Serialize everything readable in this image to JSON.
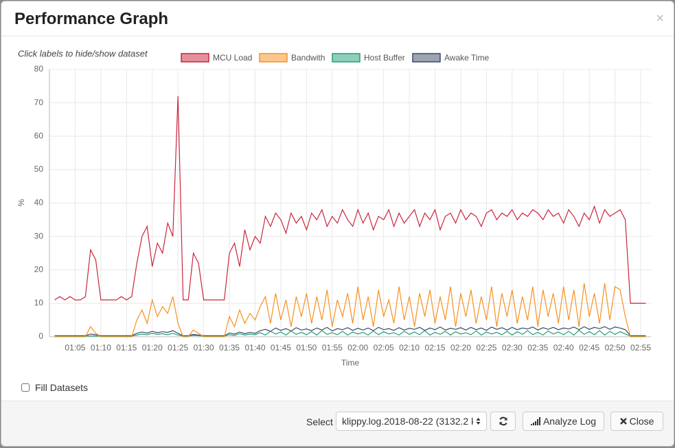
{
  "header": {
    "title": "Performance Graph",
    "close": "×"
  },
  "hint": "Click labels to hide/show dataset",
  "chart_data": {
    "type": "line",
    "y_label": "%",
    "x_label": "Time",
    "x": [
      "01:01",
      "01:02",
      "01:03",
      "01:04",
      "01:05",
      "01:06",
      "01:07",
      "01:08",
      "01:09",
      "01:10",
      "01:11",
      "01:12",
      "01:13",
      "01:14",
      "01:15",
      "01:16",
      "01:17",
      "01:18",
      "01:19",
      "01:20",
      "01:21",
      "01:22",
      "01:23",
      "01:24",
      "01:25",
      "01:26",
      "01:27",
      "01:28",
      "01:29",
      "01:30",
      "01:31",
      "01:32",
      "01:33",
      "01:34",
      "01:35",
      "01:36",
      "01:37",
      "01:38",
      "01:39",
      "01:40",
      "01:41",
      "01:42",
      "01:43",
      "01:44",
      "01:45",
      "01:46",
      "01:47",
      "01:48",
      "01:49",
      "01:50",
      "01:51",
      "01:52",
      "01:53",
      "01:54",
      "01:55",
      "01:56",
      "01:57",
      "01:58",
      "01:59",
      "02:00",
      "02:01",
      "02:02",
      "02:03",
      "02:04",
      "02:05",
      "02:06",
      "02:07",
      "02:08",
      "02:09",
      "02:10",
      "02:11",
      "02:12",
      "02:13",
      "02:14",
      "02:15",
      "02:16",
      "02:17",
      "02:18",
      "02:19",
      "02:20",
      "02:21",
      "02:22",
      "02:23",
      "02:24",
      "02:25",
      "02:26",
      "02:27",
      "02:28",
      "02:29",
      "02:30",
      "02:31",
      "02:32",
      "02:33",
      "02:34",
      "02:35",
      "02:36",
      "02:37",
      "02:38",
      "02:39",
      "02:40",
      "02:41",
      "02:42",
      "02:43",
      "02:44",
      "02:45",
      "02:46",
      "02:47",
      "02:48",
      "02:49",
      "02:50",
      "02:51",
      "02:52",
      "02:53",
      "02:54",
      "02:55",
      "02:56"
    ],
    "series": [
      {
        "name": "MCU Load",
        "color": "#c8263c",
        "values": [
          11,
          12,
          11,
          12,
          11,
          11,
          12,
          26,
          23,
          11,
          11,
          11,
          11,
          12,
          11,
          12,
          22,
          30,
          33,
          21,
          28,
          25,
          34,
          30,
          72,
          11,
          11,
          25,
          22,
          11,
          11,
          11,
          11,
          11,
          25,
          28,
          21,
          32,
          26,
          30,
          28,
          36,
          33,
          37,
          35,
          31,
          37,
          34,
          36,
          32,
          37,
          35,
          38,
          33,
          36,
          34,
          38,
          35,
          33,
          38,
          34,
          37,
          32,
          36,
          35,
          38,
          33,
          37,
          34,
          36,
          38,
          33,
          37,
          35,
          38,
          32,
          36,
          37,
          34,
          38,
          35,
          37,
          36,
          33,
          37,
          38,
          35,
          37,
          36,
          38,
          35,
          37,
          36,
          38,
          37,
          35,
          38,
          36,
          37,
          34,
          38,
          36,
          33,
          37,
          35,
          39,
          34,
          38,
          36,
          37,
          38,
          35,
          10,
          10,
          10,
          10
        ]
      },
      {
        "name": "Bandwith",
        "color": "#f7901e",
        "values": [
          0,
          0,
          0,
          0,
          0,
          0,
          0,
          3,
          1,
          0,
          0,
          0,
          0,
          0,
          0,
          0,
          5,
          8,
          4,
          11,
          6,
          9,
          7,
          12,
          4,
          0,
          0,
          2,
          1,
          0,
          0,
          0,
          0,
          0,
          6,
          3,
          8,
          4,
          7,
          5,
          9,
          12,
          4,
          13,
          5,
          11,
          3,
          12,
          6,
          13,
          4,
          12,
          5,
          14,
          3,
          11,
          6,
          13,
          4,
          15,
          5,
          12,
          3,
          14,
          6,
          11,
          4,
          15,
          5,
          12,
          3,
          13,
          6,
          14,
          4,
          12,
          5,
          15,
          3,
          13,
          6,
          14,
          4,
          12,
          5,
          15,
          3,
          13,
          6,
          14,
          4,
          12,
          5,
          15,
          3,
          14,
          6,
          13,
          4,
          15,
          5,
          14,
          3,
          16,
          6,
          13,
          4,
          16,
          5,
          15,
          14,
          6,
          0,
          0,
          0,
          0
        ]
      },
      {
        "name": "Host Buffer",
        "color": "#1f9e77",
        "values": [
          0.2,
          0.2,
          0.2,
          0.2,
          0.2,
          0.2,
          0.2,
          0.2,
          0.2,
          0.2,
          0.2,
          0.2,
          0.2,
          0.2,
          0.2,
          0.2,
          0.5,
          0.8,
          0.6,
          1,
          0.7,
          0.9,
          0.6,
          1,
          0.5,
          0.2,
          0.2,
          0.4,
          0.3,
          0.2,
          0.2,
          0.2,
          0.2,
          0.2,
          0.6,
          0.4,
          0.9,
          0.5,
          0.8,
          0.6,
          1.2,
          0.5,
          1.6,
          0.8,
          1.4,
          0.5,
          1.7,
          0.7,
          1.3,
          0.6,
          1.5,
          0.5,
          1.8,
          0.7,
          1.2,
          0.6,
          1.6,
          0.5,
          1.4,
          0.8,
          1.3,
          0.5,
          1.7,
          0.6,
          1.5,
          0.8,
          1.2,
          0.5,
          1.6,
          0.7,
          1.4,
          0.6,
          1.8,
          0.5,
          1.3,
          0.7,
          1.6,
          0.5,
          1.5,
          0.8,
          1.2,
          0.6,
          1.7,
          0.5,
          1.4,
          0.8,
          1.3,
          0.6,
          1.6,
          0.5,
          1.5,
          0.7,
          1.8,
          0.6,
          1.3,
          0.5,
          1.7,
          0.8,
          1.4,
          0.6,
          1.6,
          0.5,
          1.9,
          0.7,
          1.5,
          0.6,
          1.8,
          0.5,
          1.6,
          0.7,
          1.5,
          0.8,
          0.2,
          0.2,
          0.2,
          0.2
        ]
      },
      {
        "name": "Awake Time",
        "color": "#3a4a66",
        "values": [
          0.3,
          0.3,
          0.3,
          0.3,
          0.3,
          0.3,
          0.3,
          0.8,
          0.6,
          0.3,
          0.3,
          0.3,
          0.3,
          0.3,
          0.3,
          0.3,
          1,
          1.4,
          1.1,
          1.6,
          1.2,
          1.5,
          1.3,
          1.8,
          1,
          0.3,
          0.3,
          0.7,
          0.5,
          0.3,
          0.3,
          0.3,
          0.3,
          0.3,
          1.1,
          0.8,
          1.4,
          0.9,
          1.3,
          1,
          1.8,
          2.2,
          1.6,
          2.6,
          1.9,
          2.4,
          1.7,
          2.7,
          2,
          2.3,
          1.8,
          2.6,
          2,
          2.8,
          1.7,
          2.4,
          2.1,
          2.7,
          1.9,
          2.5,
          2,
          2.6,
          1.8,
          2.8,
          2.1,
          2.4,
          1.9,
          2.7,
          2,
          2.5,
          2.2,
          2.8,
          1.9,
          2.6,
          2.1,
          2.9,
          2,
          2.5,
          2.2,
          2.7,
          2,
          2.8,
          2.1,
          2.6,
          1.9,
          2.9,
          2.2,
          2.7,
          2,
          2.8,
          2.1,
          2.6,
          2.3,
          2.9,
          2,
          2.7,
          2.2,
          2.8,
          2.1,
          2.6,
          2.3,
          2.9,
          2.1,
          3,
          2.2,
          2.8,
          2.4,
          3,
          2.2,
          2.9,
          2.6,
          2.1,
          0.3,
          0.3,
          0.3,
          0.3
        ]
      }
    ],
    "xlim": [
      "01:00",
      "02:57"
    ],
    "xticks": [
      "01:05",
      "01:10",
      "01:15",
      "01:20",
      "01:25",
      "01:30",
      "01:35",
      "01:40",
      "01:45",
      "01:50",
      "01:55",
      "02:00",
      "02:05",
      "02:10",
      "02:15",
      "02:20",
      "02:25",
      "02:30",
      "02:35",
      "02:40",
      "02:45",
      "02:50",
      "02:55"
    ],
    "ylim": [
      0,
      80
    ],
    "yticks": [
      0,
      10,
      20,
      30,
      40,
      50,
      60,
      70,
      80
    ],
    "grid": true,
    "legend": "top"
  },
  "fill_datasets": {
    "label": "Fill Datasets",
    "checked": false
  },
  "footer": {
    "select_label": "Select",
    "select_value": "klippy.log.2018-08-22 (3132.2 k",
    "analyze": "Analyze Log",
    "close": "Close"
  }
}
